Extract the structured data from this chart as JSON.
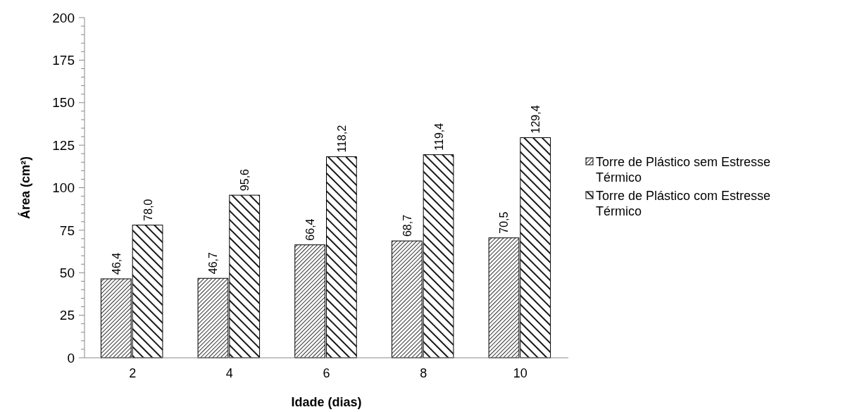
{
  "chart_data": {
    "type": "bar",
    "xlabel": "Idade (dias)",
    "ylabel": "Área (cm²)",
    "categories": [
      "2",
      "4",
      "6",
      "8",
      "10"
    ],
    "series": [
      {
        "name": "Torre de Plástico sem Estresse Térmico",
        "color": "#000000",
        "values": [
          46.4,
          46.7,
          66.4,
          68.7,
          70.5
        ],
        "value_labels": [
          "46,4",
          "46,7",
          "66,4",
          "68,7",
          "70,5"
        ]
      },
      {
        "name": "Torre de Plástico com Estresse Térmico",
        "color": "#000000",
        "values": [
          78.0,
          95.6,
          118.2,
          119.4,
          129.4
        ],
        "value_labels": [
          "78,0",
          "95,6",
          "118,2",
          "119,4",
          "129,4"
        ]
      }
    ],
    "ylim": [
      0,
      200
    ],
    "yticks": [
      0,
      {
        "value": 5,
        "label": null
      },
      {
        "value": 10,
        "label": null
      },
      {
        "value": 15,
        "label": null
      },
      {
        "value": 20,
        "label": null
      },
      25,
      {
        "value": 30,
        "label": null
      },
      {
        "value": 35,
        "label": null
      },
      {
        "value": 40,
        "label": null
      },
      {
        "value": 45,
        "label": null
      },
      50,
      {
        "value": 55,
        "label": null
      },
      {
        "value": 60,
        "label": null
      },
      {
        "value": 65,
        "label": null
      },
      {
        "value": 70,
        "label": null
      },
      75,
      {
        "value": 80,
        "label": null
      },
      {
        "value": 85,
        "label": null
      },
      {
        "value": 90,
        "label": null
      },
      {
        "value": 95,
        "label": null
      },
      100,
      {
        "value": 105,
        "label": null
      },
      {
        "value": 110,
        "label": null
      },
      {
        "value": 115,
        "label": null
      },
      {
        "value": 120,
        "label": null
      },
      125,
      {
        "value": 130,
        "label": null
      },
      {
        "value": 135,
        "label": null
      },
      {
        "value": 140,
        "label": null
      },
      {
        "value": 145,
        "label": null
      },
      150,
      {
        "value": 155,
        "label": null
      },
      {
        "value": 160,
        "label": null
      },
      {
        "value": 165,
        "label": null
      },
      {
        "value": 170,
        "label": null
      },
      175,
      {
        "value": 180,
        "label": null
      },
      {
        "value": 185,
        "label": null
      },
      {
        "value": 190,
        "label": null
      },
      {
        "value": 195,
        "label": null
      },
      200
    ],
    "legend": "right",
    "grid": false
  }
}
